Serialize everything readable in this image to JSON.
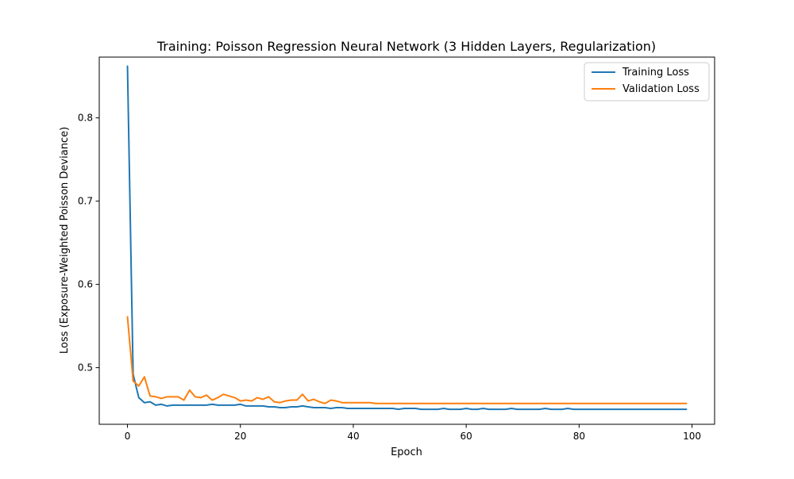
{
  "chart_data": {
    "type": "line",
    "title": "Training: Poisson Regression Neural Network (3 Hidden Layers, Regularization)",
    "xlabel": "Epoch",
    "ylabel": "Loss (Exposure-Weighted Poisson Deviance)",
    "xlim": [
      -5,
      104
    ],
    "ylim": [
      0.432,
      0.873
    ],
    "x_ticks": [
      0,
      20,
      40,
      60,
      80,
      100
    ],
    "y_ticks": [
      0.5,
      0.6,
      0.7,
      0.8
    ],
    "grid": false,
    "legend_position": "top-right",
    "series": [
      {
        "name": "Training Loss",
        "color": "#1f77b4",
        "values": [
          0.862,
          0.492,
          0.464,
          0.458,
          0.459,
          0.455,
          0.456,
          0.454,
          0.455,
          0.455,
          0.455,
          0.455,
          0.455,
          0.455,
          0.455,
          0.456,
          0.455,
          0.455,
          0.455,
          0.455,
          0.456,
          0.454,
          0.454,
          0.454,
          0.454,
          0.453,
          0.453,
          0.452,
          0.452,
          0.453,
          0.453,
          0.454,
          0.453,
          0.452,
          0.452,
          0.452,
          0.451,
          0.452,
          0.452,
          0.451,
          0.451,
          0.451,
          0.451,
          0.451,
          0.451,
          0.451,
          0.451,
          0.451,
          0.45,
          0.451,
          0.451,
          0.451,
          0.45,
          0.45,
          0.45,
          0.45,
          0.451,
          0.45,
          0.45,
          0.45,
          0.451,
          0.45,
          0.45,
          0.451,
          0.45,
          0.45,
          0.45,
          0.45,
          0.451,
          0.45,
          0.45,
          0.45,
          0.45,
          0.45,
          0.451,
          0.45,
          0.45,
          0.45,
          0.451,
          0.45,
          0.45,
          0.45,
          0.45,
          0.45,
          0.45,
          0.45,
          0.45,
          0.45,
          0.45,
          0.45,
          0.45,
          0.45,
          0.45,
          0.45,
          0.45,
          0.45,
          0.45,
          0.45,
          0.45,
          0.45
        ]
      },
      {
        "name": "Validation Loss",
        "color": "#ff7f0e",
        "values": [
          0.561,
          0.484,
          0.478,
          0.489,
          0.466,
          0.465,
          0.463,
          0.465,
          0.465,
          0.465,
          0.461,
          0.473,
          0.465,
          0.464,
          0.467,
          0.461,
          0.464,
          0.468,
          0.466,
          0.464,
          0.46,
          0.461,
          0.46,
          0.464,
          0.462,
          0.465,
          0.459,
          0.458,
          0.46,
          0.461,
          0.461,
          0.468,
          0.46,
          0.462,
          0.459,
          0.457,
          0.461,
          0.46,
          0.458,
          0.458,
          0.458,
          0.458,
          0.458,
          0.458,
          0.457,
          0.457,
          0.457,
          0.457,
          0.457,
          0.457,
          0.457,
          0.457,
          0.457,
          0.457,
          0.457,
          0.457,
          0.457,
          0.457,
          0.457,
          0.457,
          0.457,
          0.457,
          0.457,
          0.457,
          0.457,
          0.457,
          0.457,
          0.457,
          0.457,
          0.457,
          0.457,
          0.457,
          0.457,
          0.457,
          0.457,
          0.457,
          0.457,
          0.457,
          0.457,
          0.457,
          0.457,
          0.457,
          0.457,
          0.457,
          0.457,
          0.457,
          0.457,
          0.457,
          0.457,
          0.457,
          0.457,
          0.457,
          0.457,
          0.457,
          0.457,
          0.457,
          0.457,
          0.457,
          0.457,
          0.457
        ]
      }
    ]
  }
}
